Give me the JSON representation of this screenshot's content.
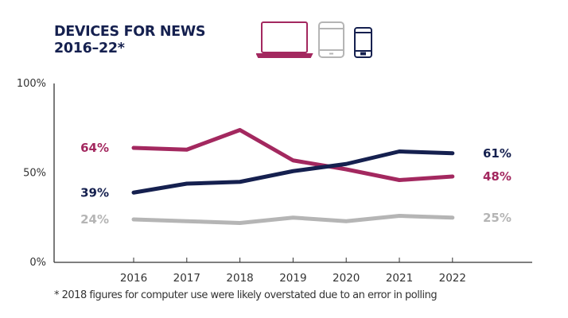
{
  "header": {
    "title_line1": "DEVICES FOR NEWS",
    "title_line2": "2016–22*"
  },
  "icons": [
    {
      "name": "laptop-icon",
      "series": "Computer",
      "color": "#a3285f"
    },
    {
      "name": "tablet-icon",
      "series": "Tablet",
      "color": "#b5b5b5"
    },
    {
      "name": "smartphone-icon",
      "series": "Smartphone",
      "color": "#15204f"
    }
  ],
  "footnote": "* 2018 figures for computer use were likely overstated due to an error in polling",
  "chart_data": {
    "type": "line",
    "title": "DEVICES FOR NEWS 2016–22*",
    "xlabel": "",
    "ylabel": "",
    "x": [
      "2016",
      "2017",
      "2018",
      "2019",
      "2020",
      "2021",
      "2022"
    ],
    "ylim": [
      0,
      100
    ],
    "yticks": [
      0,
      50,
      100
    ],
    "ytick_labels": [
      "0%",
      "50%",
      "100%"
    ],
    "grid": false,
    "legend": "icons top",
    "series": [
      {
        "name": "Computer",
        "color": "#a3285f",
        "values": [
          64,
          63,
          74,
          57,
          52,
          46,
          48
        ],
        "start_label": "64%",
        "end_label": "48%"
      },
      {
        "name": "Smartphone",
        "color": "#15204f",
        "values": [
          39,
          44,
          45,
          51,
          55,
          62,
          61
        ],
        "start_label": "39%",
        "end_label": "61%"
      },
      {
        "name": "Tablet",
        "color": "#b5b5b5",
        "values": [
          24,
          23,
          22,
          25,
          23,
          26,
          25
        ],
        "start_label": "24%",
        "end_label": "25%"
      }
    ]
  }
}
